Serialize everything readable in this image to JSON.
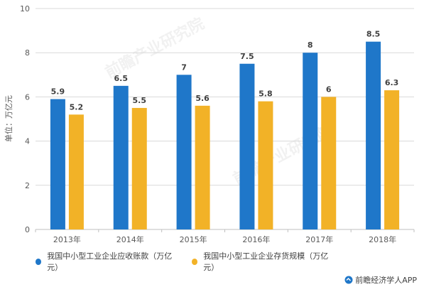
{
  "watermark_text": "前瞻产业研究院",
  "source_label": "前瞻经济学人APP",
  "colors": {
    "series1": "#1f77c9",
    "series2": "#f2b227",
    "grid": "#d9d9d9"
  },
  "chart_data": {
    "type": "bar",
    "title": "",
    "ylabel": "单位：万亿元",
    "xlabel": "",
    "ylim": [
      0,
      10
    ],
    "yticks": [
      0,
      2,
      4,
      6,
      8,
      10
    ],
    "grid": true,
    "legend_position": "bottom",
    "categories": [
      "2013年",
      "2014年",
      "2015年",
      "2016年",
      "2017年",
      "2018年"
    ],
    "series": [
      {
        "name": "我国中小型工业企业应收账款（万亿元）",
        "values": [
          5.9,
          6.5,
          7,
          7.5,
          8,
          8.5
        ],
        "labels": [
          "5.9",
          "6.5",
          "7",
          "7.5",
          "8",
          "8.5"
        ]
      },
      {
        "name": "我国中小型工业企业存货规模（万亿元）",
        "values": [
          5.2,
          5.5,
          5.6,
          5.8,
          6,
          6.3
        ],
        "labels": [
          "5.2",
          "5.5",
          "5.6",
          "5.8",
          "6",
          "6.3"
        ]
      }
    ]
  }
}
